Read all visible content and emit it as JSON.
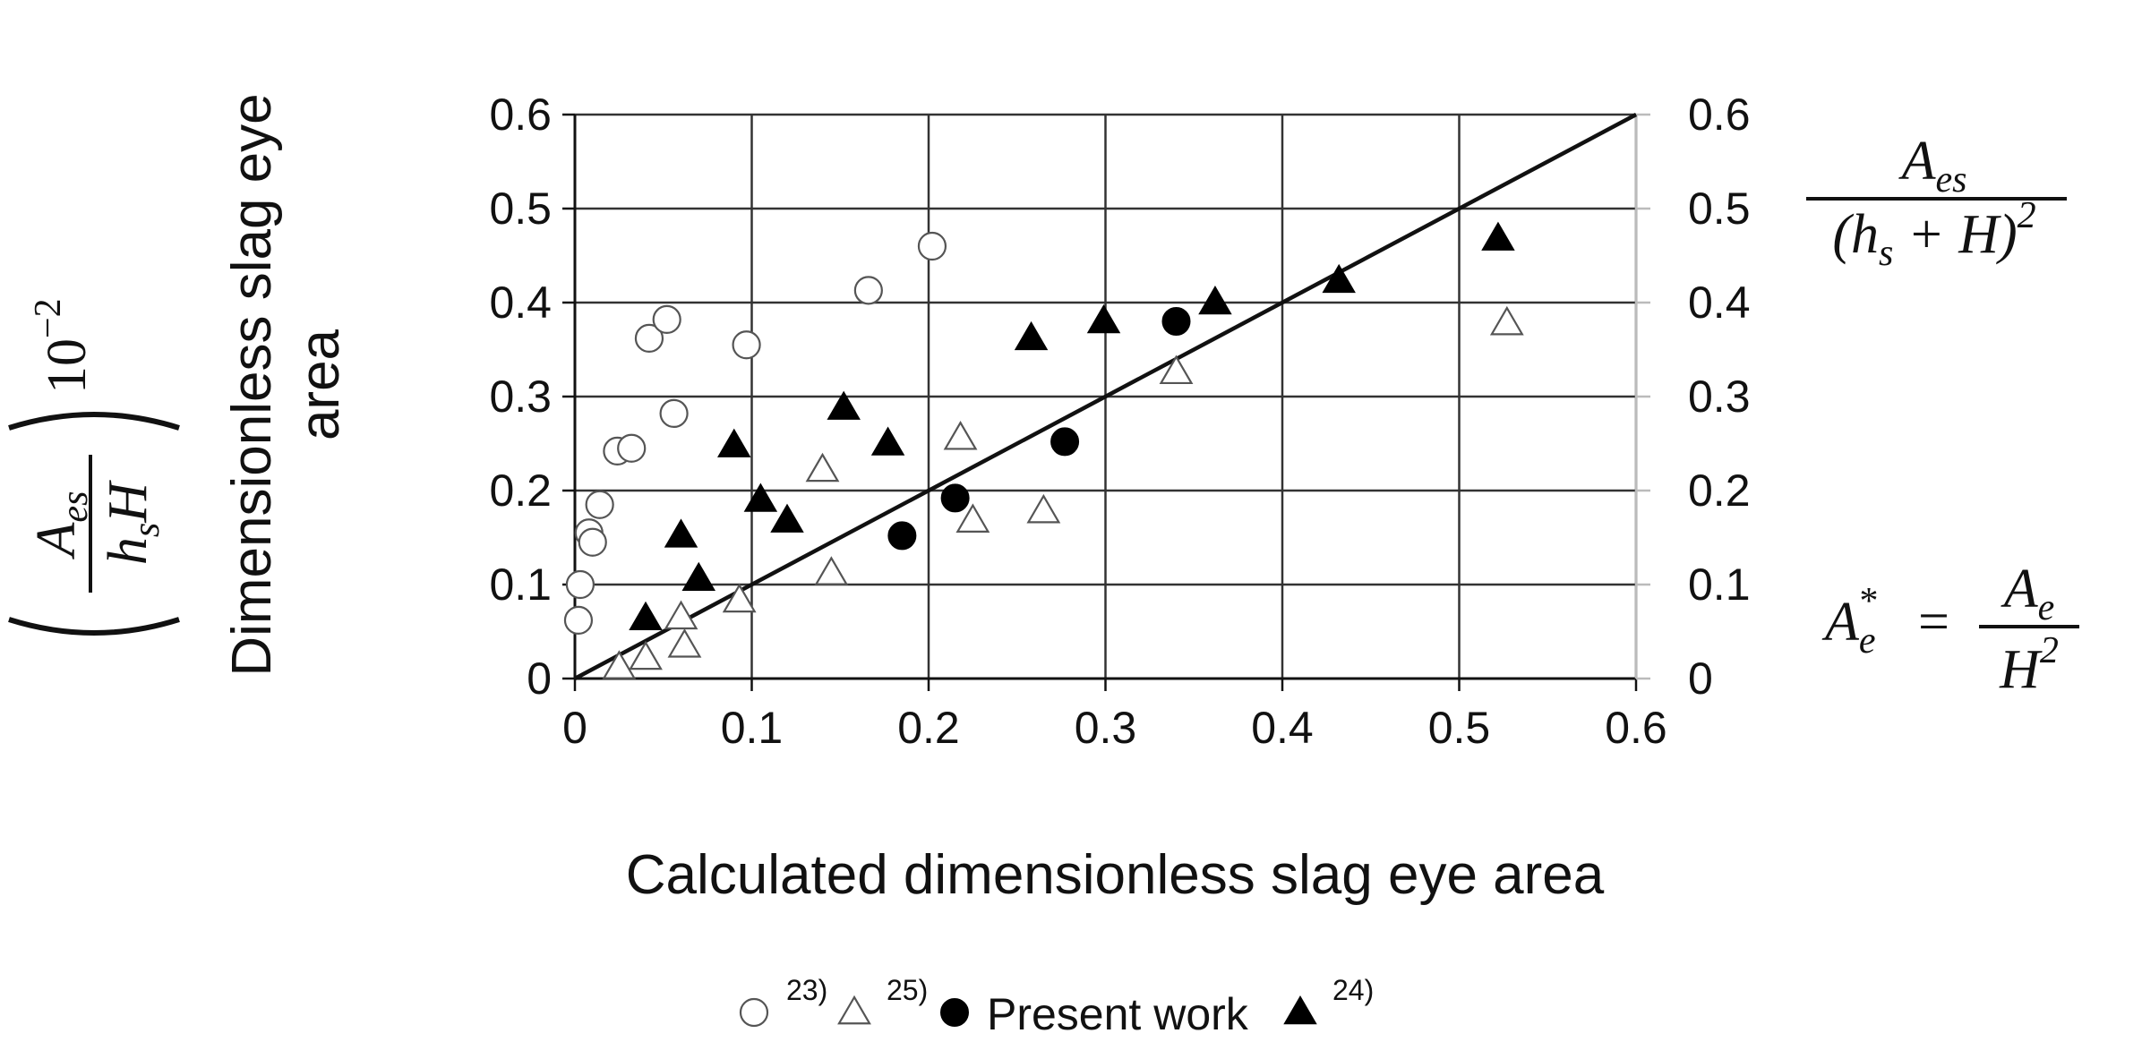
{
  "chart_data": {
    "type": "scatter",
    "xlabel": "Calculated dimensionless slag eye area",
    "ylabel": "Dimensionless slag eye area",
    "xlim": [
      0,
      0.6
    ],
    "ylim": [
      0,
      0.6
    ],
    "x_ticks": [
      "0",
      "0.1",
      "0.2",
      "0.3",
      "0.4",
      "0.5",
      "0.6"
    ],
    "y_ticks": [
      "0",
      "0.1",
      "0.2",
      "0.3",
      "0.4",
      "0.5",
      "0.6"
    ],
    "y2_ticks": [
      "0",
      "0.1",
      "0.2",
      "0.3",
      "0.4",
      "0.5",
      "0.6"
    ],
    "grid": true,
    "legend_position": "bottom",
    "reference_line": {
      "x": [
        0,
        0.6
      ],
      "y": [
        0,
        0.6
      ]
    },
    "formulas": {
      "left_numerator": "A",
      "left_numerator_sub": "es",
      "left_denominator": "h",
      "left_denominator_sub": "s",
      "left_denominator_tail": "H",
      "left_scale": "10",
      "left_scale_exp": "−2",
      "right_top_numerator": "A",
      "right_top_numerator_sub": "es",
      "right_top_denominator": "(h",
      "right_top_denominator_sub": "s",
      "right_top_denominator_tail": " + H)",
      "right_top_denominator_exp": "2",
      "right_bottom_lhs": "A",
      "right_bottom_lhs_sub": "e",
      "right_bottom_lhs_sup": "*",
      "right_bottom_eq": "=",
      "right_bottom_numerator": "A",
      "right_bottom_numerator_sub": "e",
      "right_bottom_denominator": "H",
      "right_bottom_denominator_exp": "2"
    },
    "series": [
      {
        "name": "23)",
        "marker": "open-circle",
        "points": [
          [
            0.002,
            0.062
          ],
          [
            0.003,
            0.1
          ],
          [
            0.008,
            0.155
          ],
          [
            0.01,
            0.145
          ],
          [
            0.014,
            0.185
          ],
          [
            0.024,
            0.242
          ],
          [
            0.032,
            0.245
          ],
          [
            0.042,
            0.362
          ],
          [
            0.052,
            0.382
          ],
          [
            0.056,
            0.282
          ],
          [
            0.097,
            0.355
          ],
          [
            0.166,
            0.413
          ],
          [
            0.202,
            0.46
          ]
        ]
      },
      {
        "name": "25)",
        "marker": "open-triangle",
        "points": [
          [
            0.025,
            0.012
          ],
          [
            0.04,
            0.022
          ],
          [
            0.06,
            0.065
          ],
          [
            0.062,
            0.035
          ],
          [
            0.093,
            0.083
          ],
          [
            0.14,
            0.222
          ],
          [
            0.145,
            0.112
          ],
          [
            0.218,
            0.256
          ],
          [
            0.225,
            0.168
          ],
          [
            0.265,
            0.178
          ],
          [
            0.34,
            0.326
          ],
          [
            0.527,
            0.378
          ]
        ]
      },
      {
        "name": "Present work",
        "marker": "filled-circle",
        "points": [
          [
            0.185,
            0.152
          ],
          [
            0.215,
            0.192
          ],
          [
            0.277,
            0.252
          ],
          [
            0.34,
            0.38
          ]
        ]
      },
      {
        "name": "24)",
        "marker": "filled-triangle",
        "points": [
          [
            0.04,
            0.064
          ],
          [
            0.06,
            0.152
          ],
          [
            0.07,
            0.106
          ],
          [
            0.09,
            0.248
          ],
          [
            0.105,
            0.19
          ],
          [
            0.12,
            0.168
          ],
          [
            0.152,
            0.288
          ],
          [
            0.177,
            0.25
          ],
          [
            0.258,
            0.362
          ],
          [
            0.299,
            0.38
          ],
          [
            0.362,
            0.4
          ],
          [
            0.432,
            0.423
          ],
          [
            0.522,
            0.468
          ]
        ]
      }
    ],
    "legend_entries": [
      {
        "label": "23)",
        "marker": "open-circle",
        "superscript": true
      },
      {
        "label": "25)",
        "marker": "open-triangle",
        "superscript": true
      },
      {
        "label": "Present work",
        "marker": "filled-circle",
        "superscript": false
      },
      {
        "label": "24)",
        "marker": "filled-triangle",
        "superscript": true
      }
    ]
  }
}
